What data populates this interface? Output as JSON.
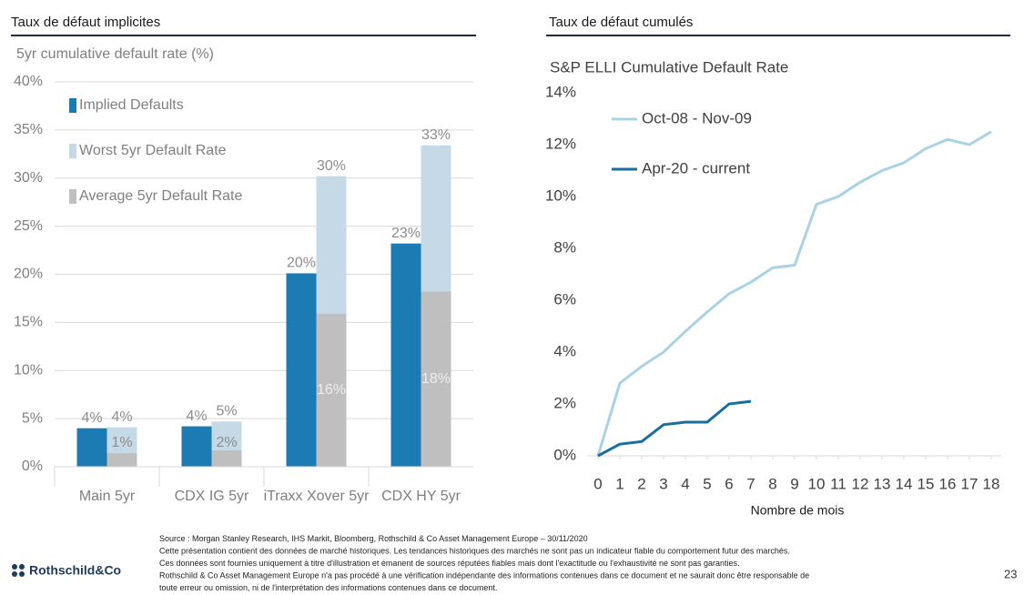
{
  "panels": [
    "Taux de défaut implicites",
    "Taux de défaut cumulés"
  ],
  "chart_data": [
    {
      "type": "bar",
      "title": "5yr cumulative default rate (%)",
      "categories": [
        "Main 5yr",
        "CDX IG 5yr",
        "iTraxx Xover 5yr",
        "CDX HY 5yr"
      ],
      "series": [
        {
          "name": "Implied Defaults",
          "color": "#1b7bb2",
          "values": [
            4.0,
            4.2,
            20.1,
            23.2
          ],
          "value_labels": [
            "4%",
            "4%",
            "20%",
            "23%"
          ]
        },
        {
          "name": "Worst 5yr Default Rate",
          "color": "#c6d9e6",
          "values": [
            4.1,
            4.7,
            30.2,
            33.4
          ],
          "value_labels": [
            "4%",
            "5%",
            "30%",
            "33%"
          ]
        },
        {
          "name": "Average 5yr Default Rate",
          "color": "#bfbfbf",
          "values": [
            1.4,
            1.7,
            15.9,
            18.2
          ],
          "value_labels": [
            "1%",
            "2%",
            "16%",
            "18%"
          ]
        }
      ],
      "ylim": [
        0,
        40
      ],
      "yticks": [
        {
          "value": 0,
          "label": "0%"
        },
        {
          "value": 5,
          "label": "5%"
        },
        {
          "value": 10,
          "label": "10%"
        },
        {
          "value": 15,
          "label": "15%"
        },
        {
          "value": 20,
          "label": "20%"
        },
        {
          "value": 25,
          "label": "25%"
        },
        {
          "value": 30,
          "label": "30%"
        },
        {
          "value": 35,
          "label": "35%"
        },
        {
          "value": 40,
          "label": "40%"
        }
      ],
      "grid": true
    },
    {
      "type": "line",
      "title": "S&P ELLI Cumulative Default Rate",
      "xlabel": "Nombre de mois",
      "x": [
        0,
        1,
        2,
        3,
        4,
        5,
        6,
        7,
        8,
        9,
        10,
        11,
        12,
        13,
        14,
        15,
        16,
        17,
        18
      ],
      "series": [
        {
          "name": "Oct-08 - Nov-09",
          "color": "#a9d3e4",
          "values": [
            0,
            2.8,
            3.45,
            4.0,
            4.8,
            5.55,
            6.25,
            6.7,
            7.25,
            7.35,
            9.7,
            10.0,
            10.55,
            11.0,
            11.3,
            11.85,
            12.2,
            12.0,
            12.5
          ]
        },
        {
          "name": "Apr-20 - current",
          "color": "#1a6e9f",
          "values": [
            0,
            0.45,
            0.55,
            1.2,
            1.3,
            1.3,
            2.0,
            2.1,
            null,
            null,
            null,
            null,
            null,
            null,
            null,
            null,
            null,
            null,
            null
          ]
        }
      ],
      "xlim": [
        0,
        18
      ],
      "xticks": [
        0,
        1,
        2,
        3,
        4,
        5,
        6,
        7,
        8,
        9,
        10,
        11,
        12,
        13,
        14,
        15,
        16,
        17,
        18
      ],
      "ylim": [
        0,
        14
      ],
      "yticks": [
        {
          "value": 0,
          "label": "0%"
        },
        {
          "value": 2,
          "label": "2%"
        },
        {
          "value": 4,
          "label": "4%"
        },
        {
          "value": 6,
          "label": "6%"
        },
        {
          "value": 8,
          "label": "8%"
        },
        {
          "value": 10,
          "label": "10%"
        },
        {
          "value": 12,
          "label": "12%"
        },
        {
          "value": 14,
          "label": "14%"
        }
      ],
      "grid": false
    }
  ],
  "footer": {
    "lines": [
      "Source : Morgan  Stanley Research, IHS Markit,  Bloomberg,  Rothschild & Co Asset Management Europe – 30/11/2020",
      "Cette présentation contient des données de marché historiques. Les tendances historiques des marchés ne sont pas un indicateur fiable du comportement futur des marchés.",
      "Ces données sont fournies uniquement à titre d'illustration et émanent de sources réputées fiables mais dont l'exactitude ou l'exhaustivité ne sont pas garanties.",
      "Rothschild & Co Asset Management Europe n'a pas procédé à une vérification indépendante des informations contenues dans ce document et ne saurait donc être responsable de",
      "toute erreur ou omission, ni de l'interprétation des informations contenues dans ce document."
    ],
    "logo": "Rothschild&Co",
    "page": "23"
  }
}
